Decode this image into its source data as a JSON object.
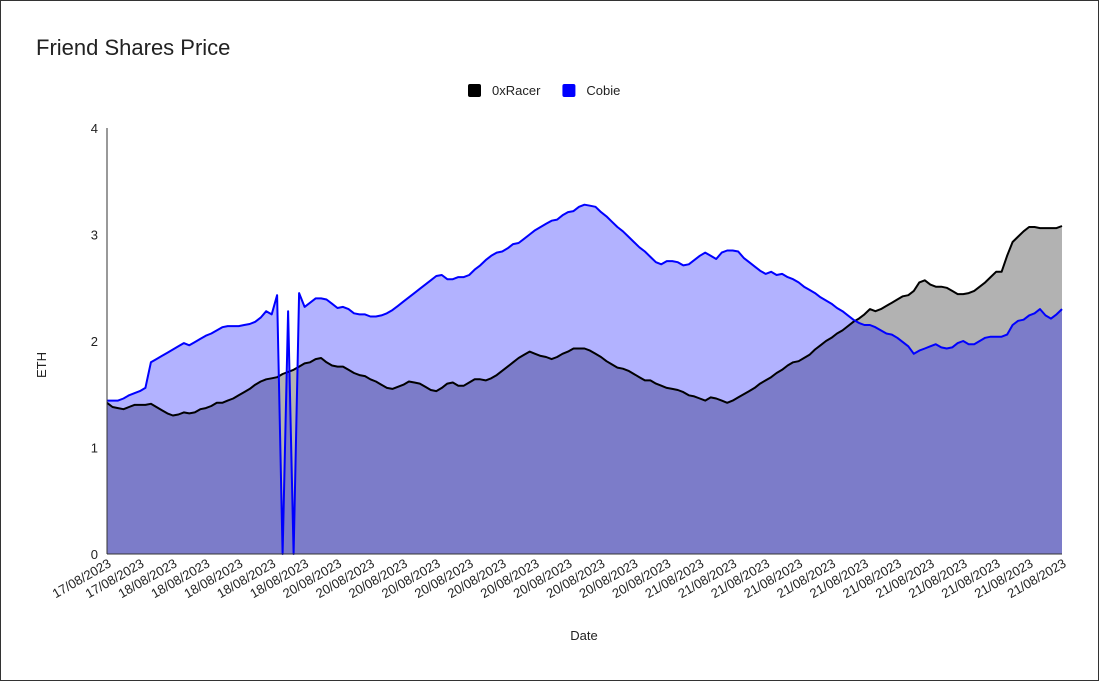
{
  "chart_data": {
    "type": "area",
    "title": "Friend Shares Price",
    "x_label": "Date",
    "y_label": "ETH",
    "categories": [
      "17/08/2023",
      null,
      null,
      null,
      null,
      null,
      "17/08/2023",
      null,
      null,
      null,
      null,
      null,
      "18/08/2023",
      null,
      null,
      null,
      null,
      null,
      "18/08/2023",
      null,
      null,
      null,
      null,
      null,
      "18/08/2023",
      null,
      null,
      null,
      null,
      null,
      "18/08/2023",
      null,
      null,
      null,
      null,
      null,
      "18/08/2023",
      null,
      null,
      null,
      null,
      null,
      "20/08/2023",
      null,
      null,
      null,
      null,
      null,
      "20/08/2023",
      null,
      null,
      null,
      null,
      null,
      "20/08/2023",
      null,
      null,
      null,
      null,
      null,
      "20/08/2023",
      null,
      null,
      null,
      null,
      null,
      "20/08/2023",
      null,
      null,
      null,
      null,
      null,
      "20/08/2023",
      null,
      null,
      null,
      null,
      null,
      "20/08/2023",
      null,
      null,
      null,
      null,
      null,
      "20/08/2023",
      null,
      null,
      null,
      null,
      null,
      "20/08/2023",
      null,
      null,
      null,
      null,
      null,
      "20/08/2023",
      null,
      null,
      null,
      null,
      null,
      "20/08/2023",
      null,
      null,
      null,
      null,
      null,
      "21/08/2023",
      null,
      null,
      null,
      null,
      null,
      "21/08/2023",
      null,
      null,
      null,
      null,
      null,
      "21/08/2023",
      null,
      null,
      null,
      null,
      null,
      "21/08/2023",
      null,
      null,
      null,
      null,
      null,
      "21/08/2023",
      null,
      null,
      null,
      null,
      null,
      "21/08/2023",
      null,
      null,
      null,
      null,
      null,
      "21/08/2023",
      null,
      null,
      null,
      null,
      null,
      "21/08/2023",
      null,
      null,
      null,
      null,
      null,
      "21/08/2023",
      null,
      null,
      null,
      null,
      null,
      "21/08/2023",
      null,
      null,
      null,
      null,
      null,
      "21/08/2023",
      null,
      null,
      null,
      null,
      null,
      "21/08/2023"
    ],
    "series": [
      {
        "name": "0xRacer",
        "color": "#000000",
        "values": [
          1.42,
          1.38,
          1.37,
          1.36,
          1.38,
          1.4,
          1.4,
          1.4,
          1.41,
          1.38,
          1.35,
          1.32,
          1.3,
          1.31,
          1.33,
          1.32,
          1.33,
          1.36,
          1.37,
          1.39,
          1.42,
          1.42,
          1.44,
          1.46,
          1.49,
          1.52,
          1.55,
          1.59,
          1.62,
          1.64,
          1.65,
          1.66,
          1.69,
          1.71,
          1.73,
          1.76,
          1.79,
          1.8,
          1.83,
          1.84,
          1.8,
          1.77,
          1.76,
          1.76,
          1.73,
          1.7,
          1.68,
          1.67,
          1.64,
          1.62,
          1.59,
          1.56,
          1.55,
          1.57,
          1.59,
          1.62,
          1.61,
          1.6,
          1.57,
          1.54,
          1.53,
          1.56,
          1.6,
          1.61,
          1.58,
          1.58,
          1.61,
          1.64,
          1.64,
          1.63,
          1.65,
          1.68,
          1.72,
          1.76,
          1.8,
          1.84,
          1.87,
          1.9,
          1.88,
          1.86,
          1.85,
          1.83,
          1.85,
          1.88,
          1.9,
          1.93,
          1.93,
          1.93,
          1.91,
          1.88,
          1.85,
          1.81,
          1.78,
          1.75,
          1.74,
          1.72,
          1.69,
          1.66,
          1.63,
          1.63,
          1.6,
          1.58,
          1.56,
          1.55,
          1.54,
          1.52,
          1.49,
          1.48,
          1.46,
          1.44,
          1.47,
          1.46,
          1.44,
          1.42,
          1.44,
          1.47,
          1.5,
          1.53,
          1.56,
          1.6,
          1.63,
          1.66,
          1.7,
          1.73,
          1.77,
          1.8,
          1.81,
          1.84,
          1.87,
          1.92,
          1.96,
          2.0,
          2.03,
          2.07,
          2.1,
          2.14,
          2.18,
          2.21,
          2.25,
          2.3,
          2.28,
          2.3,
          2.33,
          2.36,
          2.39,
          2.42,
          2.43,
          2.47,
          2.55,
          2.57,
          2.53,
          2.51,
          2.51,
          2.5,
          2.47,
          2.44,
          2.44,
          2.45,
          2.47,
          2.51,
          2.55,
          2.6,
          2.65,
          2.65,
          2.8,
          2.93,
          2.98,
          3.03,
          3.07,
          3.07,
          3.06,
          3.06,
          3.06,
          3.06,
          3.08
        ]
      },
      {
        "name": "Cobie",
        "color": "#0000ff",
        "values": [
          1.44,
          1.44,
          1.44,
          1.46,
          1.49,
          1.51,
          1.53,
          1.56,
          1.8,
          1.83,
          1.86,
          1.89,
          1.92,
          1.95,
          1.98,
          1.96,
          1.99,
          2.02,
          2.05,
          2.07,
          2.1,
          2.13,
          2.14,
          2.14,
          2.14,
          2.15,
          2.16,
          2.18,
          2.22,
          2.28,
          2.25,
          2.43,
          0,
          2.28,
          0,
          2.45,
          2.32,
          2.36,
          2.4,
          2.4,
          2.39,
          2.35,
          2.31,
          2.32,
          2.3,
          2.26,
          2.25,
          2.25,
          2.23,
          2.23,
          2.24,
          2.26,
          2.29,
          2.33,
          2.37,
          2.41,
          2.45,
          2.49,
          2.53,
          2.57,
          2.61,
          2.62,
          2.58,
          2.58,
          2.6,
          2.6,
          2.62,
          2.67,
          2.71,
          2.76,
          2.8,
          2.83,
          2.84,
          2.87,
          2.91,
          2.92,
          2.96,
          3.0,
          3.04,
          3.07,
          3.1,
          3.13,
          3.14,
          3.18,
          3.21,
          3.22,
          3.26,
          3.28,
          3.27,
          3.26,
          3.21,
          3.17,
          3.12,
          3.07,
          3.03,
          2.98,
          2.93,
          2.88,
          2.84,
          2.79,
          2.74,
          2.72,
          2.75,
          2.75,
          2.74,
          2.71,
          2.72,
          2.76,
          2.8,
          2.83,
          2.8,
          2.77,
          2.83,
          2.85,
          2.85,
          2.84,
          2.78,
          2.74,
          2.7,
          2.66,
          2.63,
          2.65,
          2.62,
          2.63,
          2.6,
          2.58,
          2.55,
          2.51,
          2.48,
          2.45,
          2.41,
          2.38,
          2.35,
          2.31,
          2.28,
          2.24,
          2.2,
          2.17,
          2.15,
          2.15,
          2.13,
          2.1,
          2.07,
          2.06,
          2.03,
          1.99,
          1.95,
          1.88,
          1.91,
          1.93,
          1.95,
          1.97,
          1.94,
          1.93,
          1.94,
          1.98,
          2.0,
          1.97,
          1.97,
          2.0,
          2.03,
          2.04,
          2.04,
          2.04,
          2.06,
          2.15,
          2.19,
          2.2,
          2.24,
          2.26,
          2.3,
          2.24,
          2.21,
          2.25,
          2.3
        ]
      }
    ],
    "ylim": [
      0,
      4
    ],
    "yticks": [
      0,
      1,
      2,
      3,
      4
    ],
    "grid": false,
    "legend": "top"
  }
}
